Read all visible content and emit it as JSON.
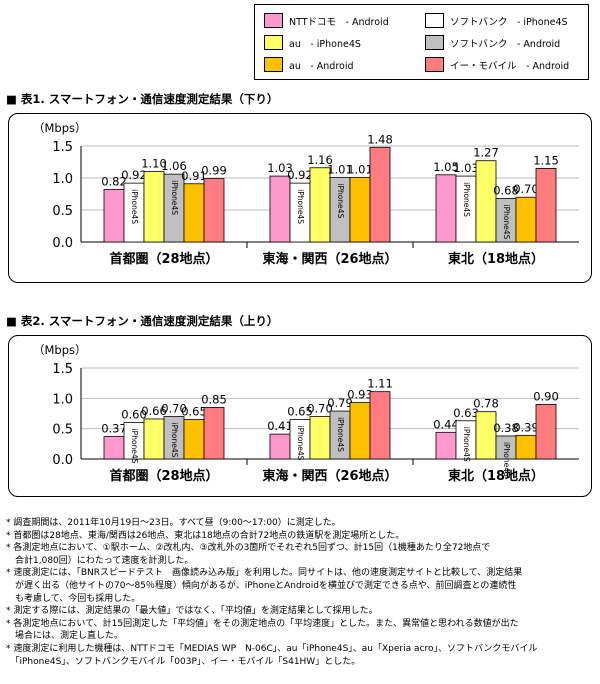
{
  "legend": [
    {
      "label": "NTTドコモ　- Android",
      "color": "#ff99cc"
    },
    {
      "label": "ソフトバンク　- iPhone4S",
      "color": "#ffffff"
    },
    {
      "label": "au　- iPhone4S",
      "color": "#ffff66"
    },
    {
      "label": "ソフトバンク　- Android",
      "color": "#c0c0c0"
    },
    {
      "label": "au　- Android",
      "color": "#ffc000"
    },
    {
      "label": "イー・モバイル　- Android",
      "color": "#ff7c80"
    }
  ],
  "chart_data": [
    {
      "type": "bar",
      "title": "■ 表1. スマートフォン・通信速度測定結果（下り）",
      "ylabel": "（Mbps）",
      "ylim": [
        0,
        1.5
      ],
      "yticks": [
        "0.0",
        "0.5",
        "1.0",
        "1.5"
      ],
      "categories": [
        "首都圏（28地点）",
        "東海・関西（26地点）",
        "東北（18地点）"
      ],
      "series": [
        {
          "name": "NTTドコモ - Android",
          "values": [
            0.82,
            1.03,
            1.05
          ]
        },
        {
          "name": "au - iPhone4S",
          "values": [
            0.92,
            0.92,
            1.03
          ]
        },
        {
          "name": "au - Android",
          "values": [
            1.1,
            1.16,
            1.27
          ]
        },
        {
          "name": "ソフトバンク - iPhone4S",
          "values": [
            1.06,
            1.01,
            0.68
          ]
        },
        {
          "name": "ソフトバンク - Android",
          "values": [
            0.91,
            1.01,
            0.7
          ]
        },
        {
          "name": "イー・モバイル - Android",
          "values": [
            0.99,
            1.48,
            1.15
          ]
        }
      ],
      "data_labels": [
        [
          "0.82",
          "0.92",
          "1.10",
          "1.06",
          "0.91",
          "0.99"
        ],
        [
          "1.03",
          "0.92",
          "1.16",
          "1.01",
          "1.01",
          "1.48"
        ],
        [
          "1.05",
          "1.03",
          "1.27",
          "0.68",
          "0.70",
          "1.15"
        ]
      ],
      "bar_text": "iPhone4S"
    },
    {
      "type": "bar",
      "title": "■ 表2. スマートフォン・通信速度測定結果（上り）",
      "ylabel": "（Mbps）",
      "ylim": [
        0,
        1.5
      ],
      "yticks": [
        "0.0",
        "0.5",
        "1.0",
        "1.5"
      ],
      "categories": [
        "首都圏（28地点）",
        "東海・関西（26地点）",
        "東北（18地点）"
      ],
      "series": [
        {
          "name": "NTTドコモ - Android",
          "values": [
            0.37,
            0.41,
            0.44
          ]
        },
        {
          "name": "au - iPhone4S",
          "values": [
            0.6,
            0.65,
            0.63
          ]
        },
        {
          "name": "au - Android",
          "values": [
            0.66,
            0.7,
            0.78
          ]
        },
        {
          "name": "ソフトバンク - iPhone4S",
          "values": [
            0.7,
            0.79,
            0.38
          ]
        },
        {
          "name": "ソフトバンク - Android",
          "values": [
            0.65,
            0.93,
            0.39
          ]
        },
        {
          "name": "イー・モバイル - Android",
          "values": [
            0.85,
            1.11,
            0.9
          ]
        }
      ],
      "data_labels": [
        [
          "0.37",
          "0.60",
          "0.66",
          "0.70",
          "0.65",
          "0.85"
        ],
        [
          "0.41",
          "0.65",
          "0.70",
          "0.79",
          "0.93",
          "1.11"
        ],
        [
          "0.44",
          "0.63",
          "0.78",
          "0.38",
          "0.39",
          "0.90"
        ]
      ],
      "bar_text": "iPhone4S"
    }
  ],
  "notes": [
    "* 調査期間は、2011年10月19日～23日。すべて昼（9:00～17:00）に測定した。",
    "* 首都圏は28地点、東海/関西は26地点、東北は18地点の合計72地点の鉄道駅を測定場所とした。",
    "* 各測定地点において、①駅ホーム、②改札内、③改札外の3箇所でそれぞれ5回ずつ、計15回（1機種あたり全72地点で",
    "　合計1,080回）にわたって速度を計測した。",
    "* 速度測定には、「BNRスピードテスト　画像読み込み版」を利用した。同サイトは、他の速度測定サイトと比較して、測定結果",
    "　が遅く出る（他サイトの70～85％程度）傾向があるが、iPhoneとAndroidを横並びで測定できる点や、前回調査との連続性",
    "　も考慮して、今回も採用した。",
    "* 測定する際には、測定結果の「最大値」ではなく、「平均値」を測定結果として採用した。",
    "* 各測定地点において、計15回測定した「平均値」をその測定地点の「平均速度」とした。また、異常値と思われる数値が出た",
    "　場合には、測定し直した。",
    "* 速度測定に利用した機種は、NTTドコモ「MEDIAS WP　N-06C」、au「iPhone4S」、au「Xperia acro」、ソフトバンクモバイル",
    "　「iPhone4S」、ソフトバンクモバイル「003P」、イー・モバイル「S41HW」とした。"
  ]
}
